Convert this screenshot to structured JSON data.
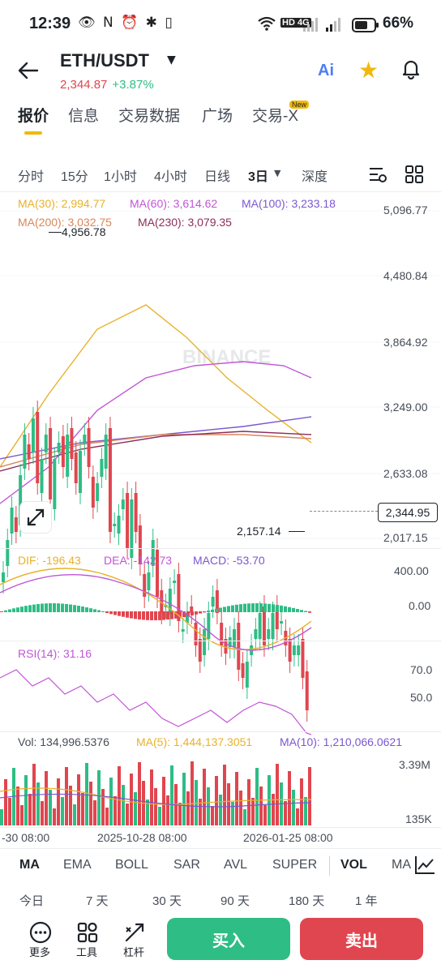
{
  "status_bar": {
    "time": "12:39",
    "left_icons": "👁 N ⏰ ✱ ▯",
    "network": "HD 4G",
    "battery": "66%"
  },
  "header": {
    "pair": "ETH/USDT",
    "price": "2,344.87",
    "change": "+3.87%",
    "ai_label": "Ai"
  },
  "tabs": [
    {
      "label": "报价",
      "active": true
    },
    {
      "label": "信息",
      "active": false
    },
    {
      "label": "交易数据",
      "active": false
    },
    {
      "label": "广场",
      "active": false
    },
    {
      "label": "交易-X",
      "active": false
    }
  ],
  "new_badge": "New",
  "intervals": [
    {
      "label": "分时"
    },
    {
      "label": "15分"
    },
    {
      "label": "1小时"
    },
    {
      "label": "4小时"
    },
    {
      "label": "日线"
    },
    {
      "label": "3日",
      "active": true
    },
    {
      "label": "深度"
    }
  ],
  "ma_row1": {
    "ma30": "MA(30): 2,994.77",
    "ma60": "MA(60): 3,614.62",
    "ma100": "MA(100): 3,233.18"
  },
  "ma_row2": {
    "ma200": "MA(200): 3,032.75",
    "ma230": "MA(230): 3,079.35"
  },
  "colors": {
    "up": "#2ebd85",
    "down": "#e0464f",
    "ma30": "#e8b12a",
    "ma60": "#c155d6",
    "ma100": "#7b57d1",
    "ma200": "#d9865a",
    "ma230": "#8c2e5a",
    "accent": "#f0b90b"
  },
  "price_axis": [
    "5,096.77",
    "4,480.84",
    "3,864.92",
    "3,249.00",
    "2,633.08",
    "2,017.15"
  ],
  "high_label": "4,956.78",
  "low_label": "2,157.14",
  "current_price_tag": "2,344.95",
  "watermark": "BINANCE",
  "macd": {
    "dif": "DIF: -196.43",
    "dea": "DEA: -142.73",
    "macd": "MACD: -53.70",
    "axis": [
      "400.00",
      "0.00"
    ]
  },
  "rsi": {
    "label": "RSI(14): 31.16",
    "axis": [
      "70.0",
      "50.0"
    ]
  },
  "vol": {
    "vol": "Vol: 134,996.5376",
    "ma5": "MA(5): 1,444,137.3051",
    "ma10": "MA(10): 1,210,066.0621",
    "axis": [
      "3.39M",
      "135K"
    ]
  },
  "time_axis": [
    "-30 08:00",
    "2025-10-28 08:00",
    "2026-01-25 08:00"
  ],
  "indicators": [
    {
      "label": "MA",
      "active": true
    },
    {
      "label": "EMA"
    },
    {
      "label": "BOLL"
    },
    {
      "label": "SAR"
    },
    {
      "label": "AVL"
    },
    {
      "label": "SUPER"
    },
    {
      "label": "VOL",
      "active": true
    },
    {
      "label": "MA"
    }
  ],
  "periods": [
    "今日",
    "7 天",
    "30 天",
    "90 天",
    "180 天",
    "1 年"
  ],
  "bottom": {
    "more": "更多",
    "tools": "工具",
    "leverage": "杠杆",
    "buy": "买入",
    "sell": "卖出"
  }
}
